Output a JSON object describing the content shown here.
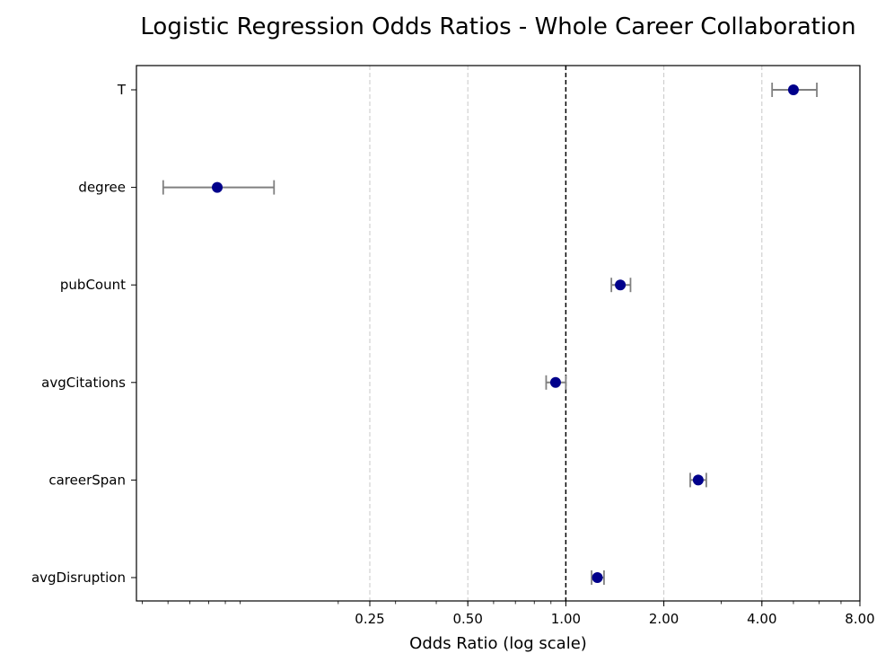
{
  "chart_data": {
    "type": "scatter",
    "subtype": "forest-plot",
    "title": "Logistic Regression Odds Ratios - Whole Career Collaboration",
    "xlabel": "Odds Ratio (log scale)",
    "ylabel": "",
    "x_scale": "log2",
    "xlim": [
      0.048,
      8.0
    ],
    "x_ticks": [
      {
        "value": 0.25,
        "label": "0.25"
      },
      {
        "value": 0.5,
        "label": "0.50"
      },
      {
        "value": 1.0,
        "label": "1.00"
      },
      {
        "value": 2.0,
        "label": "2.00"
      },
      {
        "value": 4.0,
        "label": "4.00"
      },
      {
        "value": 8.0,
        "label": "8.00"
      }
    ],
    "reference_line": 1.0,
    "grid": "vertical dashed",
    "categories": [
      "T",
      "degree",
      "pubCount",
      "avgCitations",
      "careerSpan",
      "avgDisruption"
    ],
    "points": [
      {
        "name": "T",
        "odds_ratio": 5.0,
        "ci_low": 4.3,
        "ci_high": 5.9
      },
      {
        "name": "degree",
        "odds_ratio": 0.085,
        "ci_low": 0.058,
        "ci_high": 0.127
      },
      {
        "name": "pubCount",
        "odds_ratio": 1.47,
        "ci_low": 1.38,
        "ci_high": 1.58
      },
      {
        "name": "avgCitations",
        "odds_ratio": 0.93,
        "ci_low": 0.87,
        "ci_high": 1.0
      },
      {
        "name": "careerSpan",
        "odds_ratio": 2.55,
        "ci_low": 2.41,
        "ci_high": 2.7
      },
      {
        "name": "avgDisruption",
        "odds_ratio": 1.25,
        "ci_low": 1.2,
        "ci_high": 1.31
      }
    ],
    "colors": {
      "point": "#00008b",
      "errorbar": "#808080",
      "reference": "#000000",
      "grid": "#c8c8c8"
    }
  }
}
